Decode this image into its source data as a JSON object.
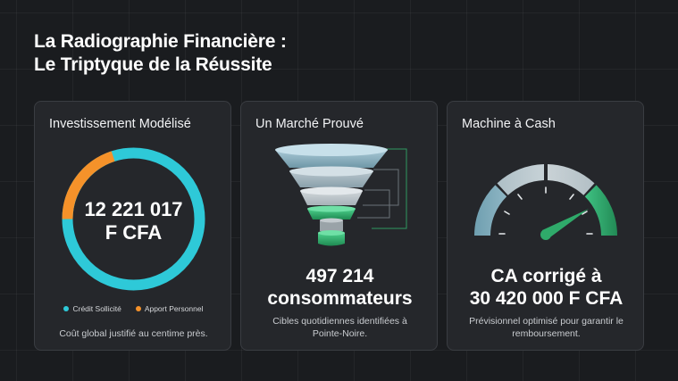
{
  "title": {
    "line1": "La Radiographie Financière :",
    "line2": "Le Triptyque de la Réussite"
  },
  "card_investment": {
    "title": "Investissement Modélisé",
    "value_line1": "12 221 017",
    "value_line2": "F CFA",
    "legend": [
      {
        "label": "Crédit Sollicité",
        "color": "#2ec9d8"
      },
      {
        "label": "Apport Personnel",
        "color": "#f5922a"
      }
    ],
    "description": "Coût global justifié au centime près."
  },
  "card_market": {
    "title": "Un Marché Prouvé",
    "value_line1": "497 214",
    "value_line2": "consommateurs",
    "description_line1": "Cibles quotidiennes identifiées à",
    "description_line2": "Pointe-Noire."
  },
  "card_cash": {
    "title": "Machine à Cash",
    "value_line1": "CA corrigé à",
    "value_line2": "30 420 000 F CFA",
    "description_line1": "Prévisionnel optimisé pour garantir le",
    "description_line2": "remboursement."
  },
  "colors": {
    "background": "#1a1c1f",
    "card": "#25272b",
    "teal": "#2ec9d8",
    "orange": "#f5922a",
    "green": "#2faa6a"
  }
}
